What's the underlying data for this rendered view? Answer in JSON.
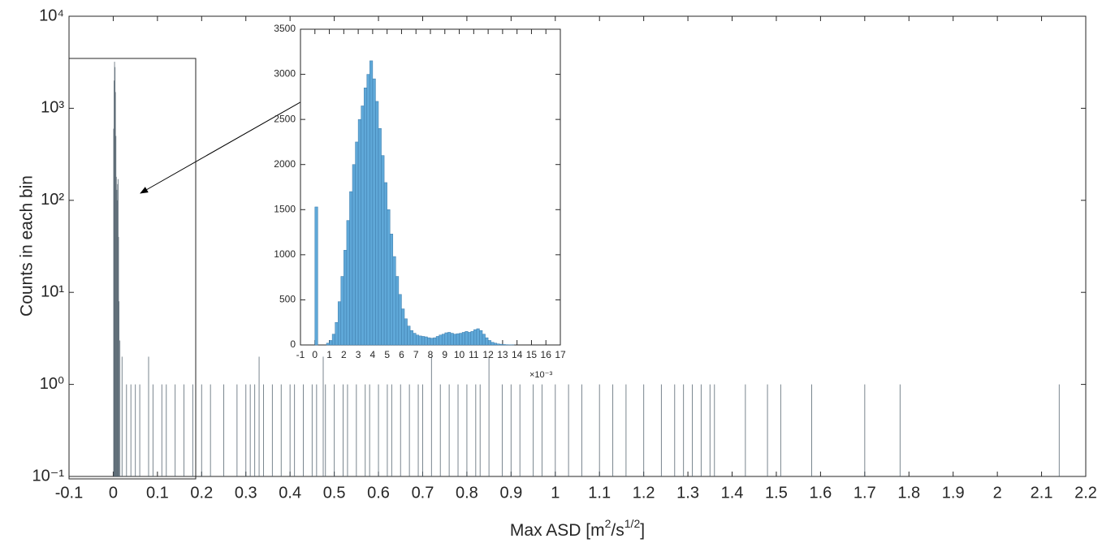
{
  "chart_data": [
    {
      "type": "bar",
      "log_y": true,
      "color": "#4e5d69",
      "ylabel": "Counts in each bin",
      "xlabel": [
        "Max ASD [m",
        "2",
        "/s",
        "1/2",
        "]"
      ],
      "xlim": [
        -0.1,
        2.2
      ],
      "xticks": [
        -0.1,
        0,
        0.1,
        0.2,
        0.3,
        0.4,
        0.5,
        0.6,
        0.7,
        0.8,
        0.9,
        1,
        1.1,
        1.2,
        1.3,
        1.4,
        1.5,
        1.6,
        1.7,
        1.8,
        1.9,
        2,
        2.1,
        2.2
      ],
      "ylim": [
        0.1,
        10000
      ],
      "yticks": [
        {
          "value": 0.1,
          "label": "10⁻¹"
        },
        {
          "value": 1,
          "label": "10⁰"
        },
        {
          "value": 10,
          "label": "10¹"
        },
        {
          "value": 100,
          "label": "10²"
        },
        {
          "value": 1000,
          "label": "10³"
        },
        {
          "value": 10000,
          "label": "10⁴"
        }
      ],
      "x": [
        0.001,
        0.002,
        0.003,
        0.004,
        0.005,
        0.006,
        0.007,
        0.008,
        0.009,
        0.01,
        0.011,
        0.012,
        0.013,
        0.015,
        0.02,
        0.03,
        0.04,
        0.05,
        0.06,
        0.08,
        0.09,
        0.11,
        0.12,
        0.14,
        0.16,
        0.18,
        0.2,
        0.22,
        0.25,
        0.28,
        0.3,
        0.31,
        0.32,
        0.33,
        0.34,
        0.36,
        0.38,
        0.4,
        0.41,
        0.43,
        0.45,
        0.46,
        0.475,
        0.48,
        0.5,
        0.52,
        0.53,
        0.55,
        0.57,
        0.58,
        0.6,
        0.62,
        0.63,
        0.65,
        0.67,
        0.69,
        0.7,
        0.72,
        0.74,
        0.76,
        0.78,
        0.8,
        0.82,
        0.83,
        0.85,
        0.88,
        0.9,
        0.92,
        0.95,
        0.97,
        1.0,
        1.03,
        1.06,
        1.1,
        1.13,
        1.16,
        1.2,
        1.24,
        1.27,
        1.29,
        1.31,
        1.33,
        1.35,
        1.36,
        1.43,
        1.48,
        1.51,
        1.58,
        1.7,
        1.78,
        2.14
      ],
      "values": [
        600,
        2000,
        3200,
        2800,
        1500,
        500,
        180,
        130,
        100,
        150,
        170,
        40,
        8,
        3,
        2,
        1,
        1,
        1,
        1,
        2,
        1,
        1,
        1,
        1,
        1,
        1,
        1,
        1,
        1,
        1,
        1,
        1,
        1,
        2,
        1,
        1,
        1,
        1,
        1,
        1,
        1,
        1,
        2,
        1,
        1,
        1,
        1,
        1,
        1,
        1,
        1,
        1,
        1,
        1,
        1,
        1,
        1,
        2,
        1,
        1,
        1,
        1,
        1,
        1,
        2,
        1,
        1,
        1,
        1,
        1,
        1,
        1,
        1,
        1,
        1,
        1,
        1,
        1,
        1,
        1,
        1,
        1,
        1,
        1,
        1,
        1,
        1,
        1,
        1,
        1,
        1
      ]
    },
    {
      "type": "histogram",
      "color": "#5fa8d8",
      "annotation": "×10⁻³",
      "xlim": [
        -0.001,
        0.017
      ],
      "xticks": [
        {
          "value": -0.001,
          "label": "-1"
        },
        {
          "value": 0,
          "label": "0"
        },
        {
          "value": 0.001,
          "label": "1"
        },
        {
          "value": 0.002,
          "label": "2"
        },
        {
          "value": 0.003,
          "label": "3"
        },
        {
          "value": 0.004,
          "label": "4"
        },
        {
          "value": 0.005,
          "label": "5"
        },
        {
          "value": 0.006,
          "label": "6"
        },
        {
          "value": 0.007,
          "label": "7"
        },
        {
          "value": 0.008,
          "label": "8"
        },
        {
          "value": 0.009,
          "label": "9"
        },
        {
          "value": 0.01,
          "label": "10"
        },
        {
          "value": 0.011,
          "label": "11"
        },
        {
          "value": 0.012,
          "label": "12"
        },
        {
          "value": 0.013,
          "label": "13"
        },
        {
          "value": 0.014,
          "label": "14"
        },
        {
          "value": 0.015,
          "label": "15"
        },
        {
          "value": 0.016,
          "label": "16"
        },
        {
          "value": 0.017,
          "label": "17"
        }
      ],
      "ylim": [
        0,
        3500
      ],
      "yticks": [
        0,
        500,
        1000,
        1500,
        2000,
        2500,
        3000,
        3500
      ],
      "bins": [
        0,
        0.0002,
        0.0004,
        0.0006,
        0.0008,
        0.001,
        0.0012,
        0.0014,
        0.0016,
        0.0018,
        0.002,
        0.0022,
        0.0024,
        0.0026,
        0.0028,
        0.003,
        0.0032,
        0.0034,
        0.0036,
        0.0038,
        0.004,
        0.0042,
        0.0044,
        0.0046,
        0.0048,
        0.005,
        0.0052,
        0.0054,
        0.0056,
        0.0058,
        0.006,
        0.0062,
        0.0064,
        0.0066,
        0.0068,
        0.007,
        0.0072,
        0.0074,
        0.0076,
        0.0078,
        0.008,
        0.0082,
        0.0084,
        0.0086,
        0.0088,
        0.009,
        0.0092,
        0.0094,
        0.0096,
        0.0098,
        0.01,
        0.0102,
        0.0104,
        0.0106,
        0.0108,
        0.011,
        0.0112,
        0.0114,
        0.0116,
        0.0118,
        0.012,
        0.0122,
        0.0124,
        0.0126,
        0.0128,
        0.013,
        0.0132,
        0.0134,
        0.0136,
        0.0138
      ],
      "counts": [
        1530,
        0,
        0,
        0,
        20,
        50,
        120,
        250,
        480,
        760,
        1050,
        1380,
        1700,
        2000,
        2250,
        2500,
        2650,
        2850,
        3000,
        3150,
        2950,
        2700,
        2400,
        2100,
        1800,
        1500,
        1230,
        980,
        760,
        560,
        400,
        290,
        210,
        160,
        130,
        110,
        100,
        95,
        90,
        80,
        75,
        80,
        95,
        110,
        120,
        135,
        140,
        130,
        120,
        125,
        130,
        140,
        150,
        140,
        150,
        170,
        180,
        160,
        120,
        80,
        50,
        30,
        20,
        12,
        8,
        5,
        3,
        2,
        1
      ]
    }
  ]
}
